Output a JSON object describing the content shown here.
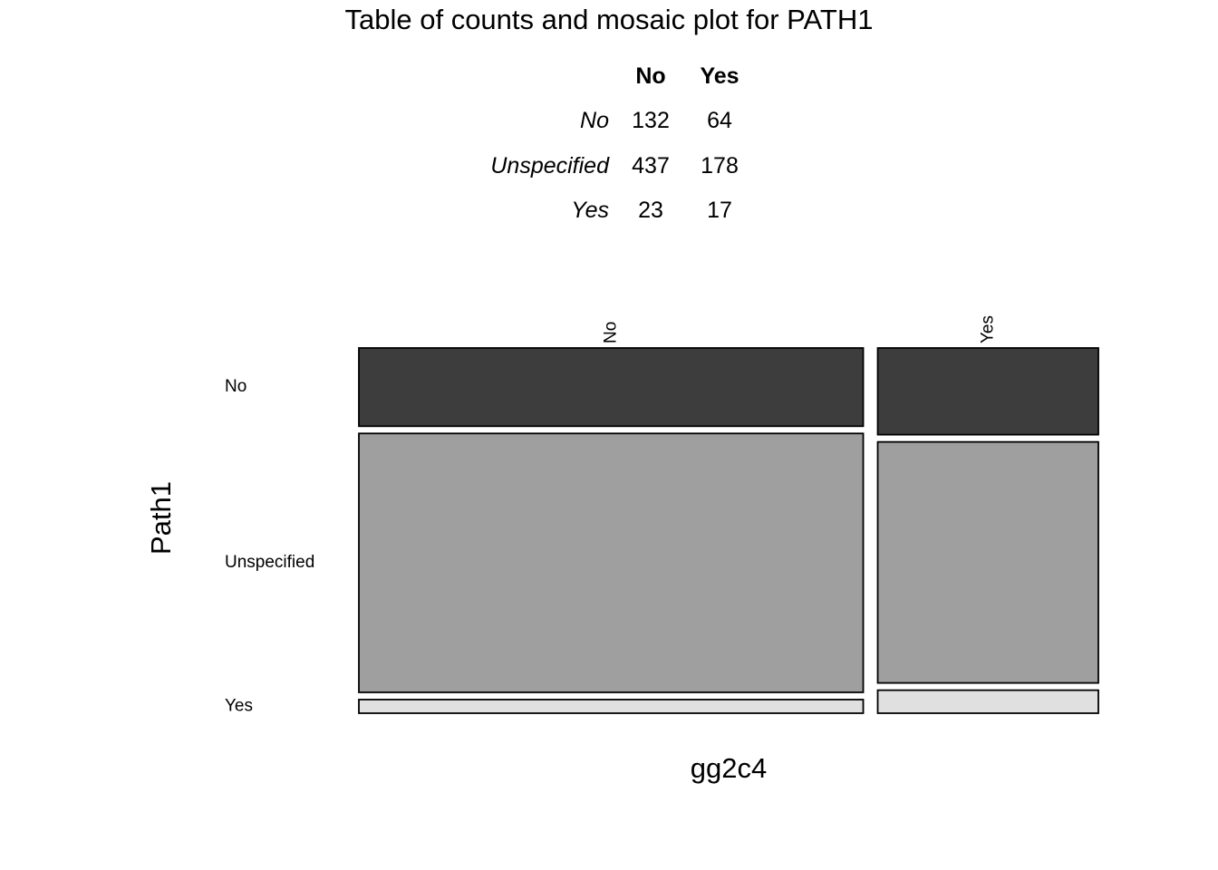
{
  "title": "Table of counts and mosaic plot for PATH1",
  "table": {
    "col_headers": [
      "No",
      "Yes"
    ],
    "rows": [
      {
        "label": "No",
        "values": [
          "132",
          "64"
        ]
      },
      {
        "label": "Unspecified",
        "values": [
          "437",
          "178"
        ]
      },
      {
        "label": "Yes",
        "values": [
          "23",
          "17"
        ]
      }
    ]
  },
  "chart_data": {
    "type": "mosaic",
    "xlabel": "gg2c4",
    "ylabel": "Path1",
    "x_categories": [
      "No",
      "Yes"
    ],
    "y_categories": [
      "No",
      "Unspecified",
      "Yes"
    ],
    "counts": [
      [
        132,
        64
      ],
      [
        437,
        178
      ],
      [
        23,
        17
      ]
    ],
    "fill_colors": {
      "No": "#3d3d3d",
      "Unspecified": "#9f9f9f",
      "Yes": "#e0e0e0"
    },
    "legend": "none"
  }
}
